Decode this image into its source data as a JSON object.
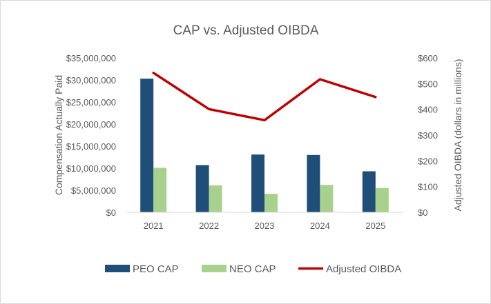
{
  "chart_data": {
    "type": "bar",
    "title": "CAP vs. Adjusted OIBDA",
    "categories": [
      "2021",
      "2022",
      "2023",
      "2024",
      "2025"
    ],
    "series": [
      {
        "name": "PEO CAP",
        "kind": "bar",
        "axis": "left",
        "color": "#1f4e79",
        "values": [
          30300000,
          10700000,
          13100000,
          13000000,
          9300000
        ]
      },
      {
        "name": "NEO CAP",
        "kind": "bar",
        "axis": "left",
        "color": "#a9d18e",
        "values": [
          10100000,
          6100000,
          4200000,
          6200000,
          5500000
        ]
      },
      {
        "name": "Adjusted OIBDA",
        "kind": "line",
        "axis": "right",
        "color": "#c00000",
        "values": [
          542,
          401,
          358,
          517,
          448
        ]
      }
    ],
    "ylabel": "Compensation Actually Paid",
    "y2label": "Adjusted OIBDA (dollars in millions)",
    "ylim": [
      0,
      35000000
    ],
    "y2lim": [
      0,
      600
    ],
    "yticks": [
      "$0",
      "$5,000,000",
      "$10,000,000",
      "$15,000,000",
      "$20,000,000",
      "$25,000,000",
      "$30,000,000",
      "$35,000,000"
    ],
    "y2ticks": [
      "$0",
      "$100",
      "$200",
      "$300",
      "$400",
      "$500",
      "$600"
    ],
    "legend_position": "bottom",
    "grid": false
  }
}
